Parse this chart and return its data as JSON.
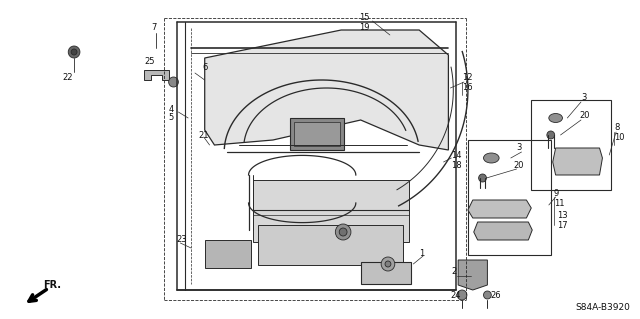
{
  "bg_color": "#ffffff",
  "diagram_code": "S84A-B3920",
  "line_color": "#2a2a2a",
  "text_color": "#111111",
  "fig_width": 6.4,
  "fig_height": 3.19,
  "dpi": 100
}
